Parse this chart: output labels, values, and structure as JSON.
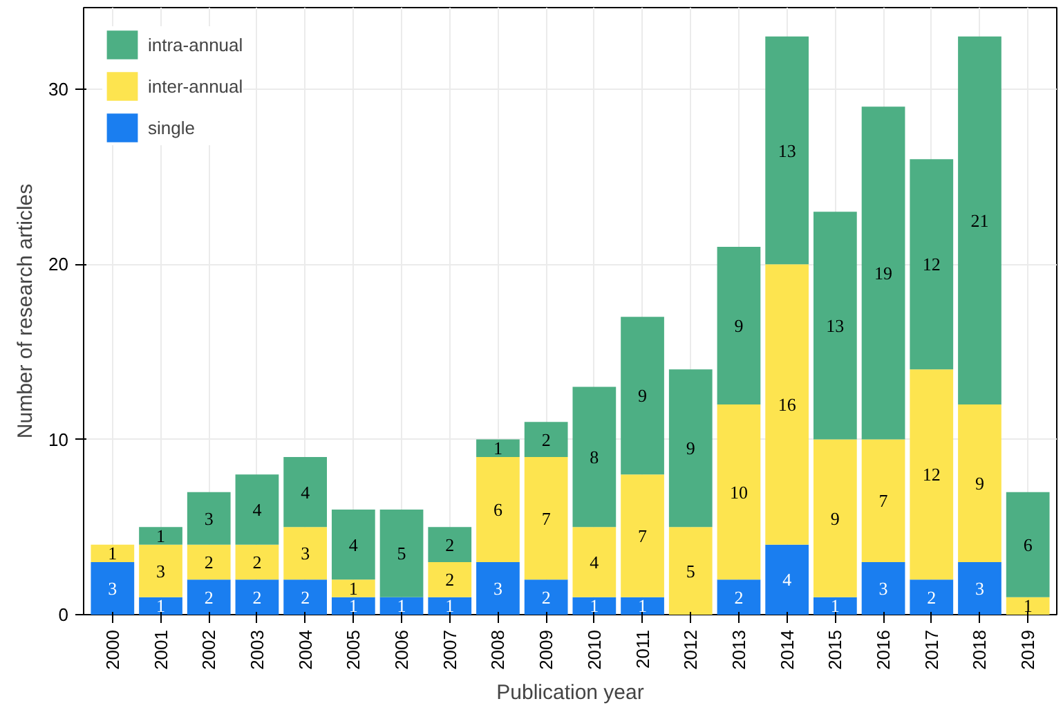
{
  "chart_data": {
    "type": "bar",
    "stacked": true,
    "xlabel": "Publication year",
    "ylabel": "Number of research articles",
    "categories": [
      "2000",
      "2001",
      "2002",
      "2003",
      "2004",
      "2005",
      "2006",
      "2007",
      "2008",
      "2009",
      "2010",
      "2011",
      "2012",
      "2013",
      "2014",
      "2015",
      "2016",
      "2017",
      "2018",
      "2019"
    ],
    "series": [
      {
        "name": "single",
        "color": "#1a7ef0",
        "values": [
          3,
          1,
          2,
          2,
          2,
          1,
          1,
          1,
          3,
          2,
          1,
          1,
          0,
          2,
          4,
          1,
          3,
          2,
          3,
          0
        ],
        "value_labels": [
          "3",
          "1",
          "2",
          "2",
          "2",
          "1",
          "1",
          "1",
          "3",
          "2",
          "1",
          "1",
          null,
          "2",
          "4",
          "1",
          "3",
          "2",
          "3",
          null
        ]
      },
      {
        "name": "inter-annual",
        "color": "#fde44f",
        "values": [
          1,
          3,
          2,
          2,
          3,
          1,
          0,
          2,
          6,
          7,
          4,
          7,
          5,
          10,
          16,
          9,
          7,
          12,
          9,
          1
        ],
        "value_labels": [
          "1",
          "3",
          "2",
          "2",
          "3",
          "1",
          null,
          "2",
          "6",
          "7",
          "4",
          "7",
          "5",
          "10",
          "16",
          "9",
          "7",
          "12",
          "9",
          "1"
        ]
      },
      {
        "name": "intra-annual",
        "color": "#4daf84",
        "values": [
          0,
          1,
          3,
          4,
          4,
          4,
          5,
          2,
          1,
          2,
          8,
          9,
          9,
          9,
          13,
          13,
          19,
          12,
          21,
          6
        ],
        "value_labels": [
          null,
          "1",
          "3",
          "4",
          "4",
          "4",
          "5",
          "2",
          "1",
          "2",
          "8",
          "9",
          "9",
          "9",
          "13",
          "13",
          "19",
          "12",
          "21",
          "6"
        ]
      }
    ],
    "ylim": [
      0,
      34.65
    ],
    "yticks": [
      0,
      10,
      20,
      30
    ],
    "grid": true,
    "legend": "top left"
  }
}
